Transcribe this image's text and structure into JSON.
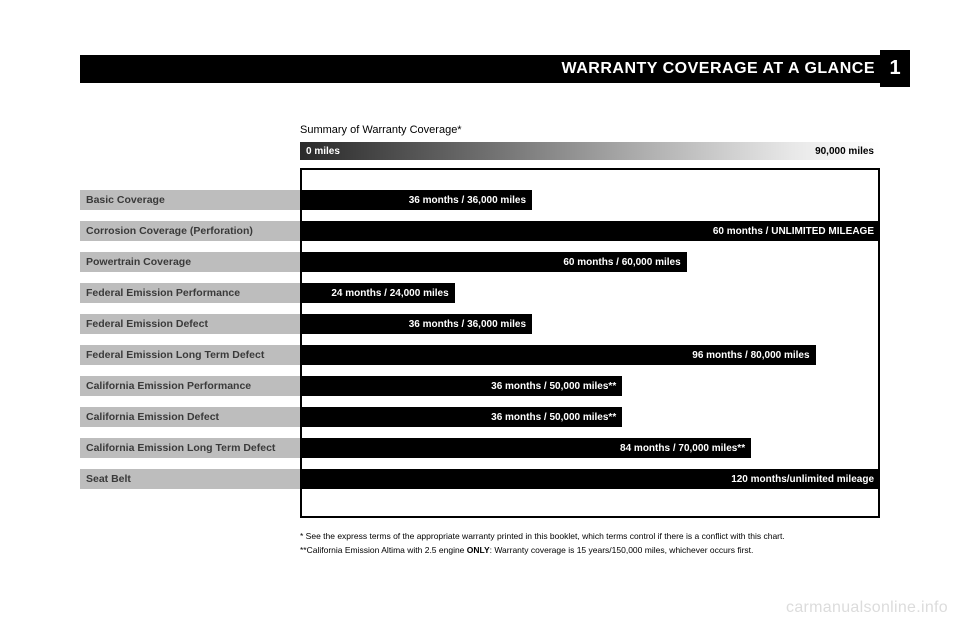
{
  "header": {
    "title": "WARRANTY COVERAGE AT A GLANCE",
    "page_number": "1",
    "title_color": "#ffffff",
    "bar_bg": "#000000",
    "page_box_bg": "#000000",
    "title_fontsize": 16
  },
  "summary_label": "Summary of Warranty Coverage*",
  "axis": {
    "min_label": "0 miles",
    "max_label": "90,000 miles",
    "max_value": 90000,
    "gradient_start": "#2a2a2a",
    "gradient_end": "#ffffff"
  },
  "chart": {
    "box_border_color": "#000000",
    "box_bg": "#ffffff",
    "row_label_bg": "#bdbdbd",
    "row_label_color": "#3a3a3a",
    "bar_bg": "#000000",
    "bar_text_color": "#ffffff",
    "label_fontsize": 10.5,
    "bar_text_fontsize": 10
  },
  "rows": [
    {
      "label": "Basic Coverage",
      "bar_label": "36 months / 36,000 miles",
      "width_miles": 36000
    },
    {
      "label": "Corrosion Coverage (Perforation)",
      "bar_label": "60 months / UNLIMITED MILEAGE",
      "width_miles": 90000
    },
    {
      "label": "Powertrain Coverage",
      "bar_label": "60 months / 60,000 miles",
      "width_miles": 60000
    },
    {
      "label": "Federal Emission Performance",
      "bar_label": "24 months / 24,000 miles",
      "width_miles": 24000
    },
    {
      "label": "Federal Emission Defect",
      "bar_label": "36 months / 36,000 miles",
      "width_miles": 36000
    },
    {
      "label": "Federal Emission Long Term Defect",
      "bar_label": "96 months / 80,000 miles",
      "width_miles": 80000
    },
    {
      "label": "California Emission Performance",
      "bar_label": "36 months / 50,000 miles**",
      "width_miles": 50000
    },
    {
      "label": "California Emission Defect",
      "bar_label": "36 months / 50,000 miles**",
      "width_miles": 50000
    },
    {
      "label": "California Emission Long Term Defect",
      "bar_label": "84 months / 70,000 miles**",
      "width_miles": 70000
    },
    {
      "label": "Seat Belt",
      "bar_label": "120 months/unlimited mileage",
      "width_miles": 90000
    }
  ],
  "footnotes": {
    "line1": "* See the express terms of the appropriate warranty printed in this booklet, which terms control if there is a conflict with this chart.",
    "line2_pre": "**California Emission Altima with 2.5 engine ",
    "line2_bold": "ONLY",
    "line2_post": ": Warranty coverage is 15 years/150,000 miles, whichever occurs first."
  },
  "watermark": "carmanualsonline.info",
  "page_bg": "#ffffff"
}
